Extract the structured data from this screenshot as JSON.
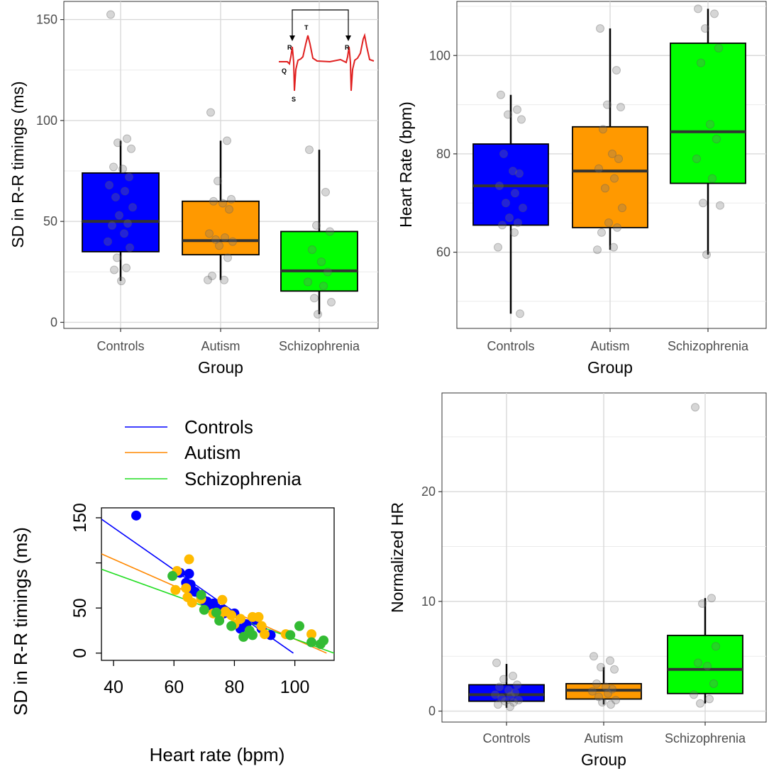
{
  "chart_data": [
    {
      "type": "boxplot",
      "id": "sd",
      "ylabel": "SD in R-R timings (ms)",
      "xlabel": "Group",
      "ylim": [
        -3,
        159
      ],
      "yticks": [
        0,
        50,
        100,
        150
      ],
      "yminor": [
        25,
        75,
        125
      ],
      "categories": [
        "Controls",
        "Autism",
        "Schizophrenia"
      ],
      "colors": [
        "#0000ff",
        "#ff9900",
        "#00ff00"
      ],
      "boxes": [
        {
          "whisker_low": 20.5,
          "q1": 35,
          "median": 50,
          "q3": 74,
          "whisker_high": 90
        },
        {
          "whisker_low": 21,
          "q1": 33.5,
          "median": 40.5,
          "q3": 60,
          "whisker_high": 90
        },
        {
          "whisker_low": 4,
          "q1": 15.5,
          "median": 25.5,
          "q3": 45,
          "whisker_high": 85.5
        }
      ],
      "points": [
        [
          152.5,
          91,
          89,
          86,
          77,
          76,
          72,
          68,
          65,
          62,
          57,
          53,
          49,
          48,
          44,
          40,
          37,
          32,
          27,
          26,
          20.5
        ],
        [
          104,
          90,
          70,
          61,
          60,
          59,
          56,
          44,
          42,
          41,
          40,
          38,
          32,
          23,
          21,
          21
        ],
        [
          85.5,
          64.5,
          48,
          45,
          36,
          30,
          25,
          20,
          18,
          12,
          10,
          4
        ]
      ],
      "inset": {
        "labels": [
          "R",
          "T",
          "R",
          "Q",
          "S"
        ]
      }
    },
    {
      "type": "boxplot",
      "id": "hr",
      "ylabel": "Heart Rate (bpm)",
      "xlabel": "Group",
      "ylim": [
        44.5,
        111
      ],
      "yticks": [
        60,
        80,
        100
      ],
      "yminor": [
        50,
        70,
        90,
        110
      ],
      "categories": [
        "Controls",
        "Autism",
        "Schizophrenia"
      ],
      "colors": [
        "#0000ff",
        "#ff9900",
        "#00ff00"
      ],
      "boxes": [
        {
          "whisker_low": 47.5,
          "q1": 65.5,
          "median": 73.5,
          "q3": 82,
          "whisker_high": 92
        },
        {
          "whisker_low": 60.5,
          "q1": 65,
          "median": 76.5,
          "q3": 85.5,
          "whisker_high": 105.5
        },
        {
          "whisker_low": 59.5,
          "q1": 74,
          "median": 84.5,
          "q3": 102.5,
          "whisker_high": 109.5
        }
      ],
      "points": [
        [
          92,
          89,
          88,
          87,
          80,
          76.5,
          76,
          73.5,
          72,
          70,
          69,
          67,
          66,
          65.5,
          64,
          61,
          47.5
        ],
        [
          105.5,
          97,
          90,
          89.5,
          85,
          80,
          79,
          77,
          75,
          73,
          69,
          66,
          65,
          64,
          61,
          60.5
        ],
        [
          109.5,
          108.5,
          105.5,
          101.5,
          98.5,
          86,
          83,
          79,
          75,
          70,
          69.5,
          59.5
        ]
      ]
    },
    {
      "type": "scatter",
      "id": "scatter",
      "xlabel": "Heart rate (bpm)",
      "ylabel": "SD in R-R timings (ms)",
      "xlim": [
        36,
        113
      ],
      "ylim": [
        -8,
        161
      ],
      "xticks": [
        40,
        60,
        80,
        100
      ],
      "yticks": [
        0,
        50,
        150
      ],
      "yticks_unlabeled": [
        100
      ],
      "legend": [
        "Controls",
        "Autism",
        "Schizophrenia"
      ],
      "legend_position": "top",
      "series": [
        {
          "name": "Controls",
          "color": "#0000ff",
          "points": [
            [
              47.5,
              152.5
            ],
            [
              62,
              89
            ],
            [
              64,
              78
            ],
            [
              65,
              88
            ],
            [
              65.5,
              76
            ],
            [
              66,
              70
            ],
            [
              67,
              68
            ],
            [
              69,
              62
            ],
            [
              70,
              58
            ],
            [
              71,
              57
            ],
            [
              72,
              53
            ],
            [
              73,
              55
            ],
            [
              74,
              50
            ],
            [
              75,
              46
            ],
            [
              76,
              48
            ],
            [
              76.5,
              44
            ],
            [
              80,
              44
            ],
            [
              82,
              27
            ],
            [
              84,
              32
            ],
            [
              87,
              37
            ],
            [
              89,
              27
            ],
            [
              92,
              20
            ]
          ],
          "fit": [
            [
              36,
              148.5
            ],
            [
              99.5,
              0
            ]
          ]
        },
        {
          "name": "Autism",
          "color": "#ffbb00",
          "points": [
            [
              60.5,
              70
            ],
            [
              61,
              91
            ],
            [
              64,
              72
            ],
            [
              64.5,
              62
            ],
            [
              65,
              104
            ],
            [
              66,
              56
            ],
            [
              69,
              60
            ],
            [
              73,
              44
            ],
            [
              75,
              41
            ],
            [
              76,
              59
            ],
            [
              77,
              46
            ],
            [
              79,
              42
            ],
            [
              80,
              32
            ],
            [
              82,
              38
            ],
            [
              85,
              23
            ],
            [
              86,
              40
            ],
            [
              88,
              40
            ],
            [
              89,
              30
            ],
            [
              90,
              21
            ],
            [
              97,
              21
            ],
            [
              105.5,
              21
            ]
          ],
          "fit": [
            [
              36,
              110
            ],
            [
              110.5,
              0
            ]
          ]
        },
        {
          "name": "Schizophrenia",
          "color": "#33bb33",
          "points": [
            [
              59.5,
              85.5
            ],
            [
              69,
              64.5
            ],
            [
              70,
              48
            ],
            [
              74,
              45
            ],
            [
              75,
              36
            ],
            [
              79,
              30
            ],
            [
              83,
              18
            ],
            [
              85,
              25
            ],
            [
              86,
              20
            ],
            [
              98.5,
              20
            ],
            [
              101.5,
              30
            ],
            [
              105.5,
              12
            ],
            [
              108.5,
              10
            ],
            [
              109.5,
              14
            ]
          ],
          "fit": [
            [
              36,
              93
            ],
            [
              113,
              0
            ]
          ]
        }
      ]
    },
    {
      "type": "boxplot",
      "id": "norm",
      "ylabel": "Normalized HR",
      "xlabel": "Group",
      "ylim": [
        -1,
        29
      ],
      "yticks": [
        0,
        10,
        20
      ],
      "yminor": [
        5,
        15,
        25
      ],
      "categories": [
        "Controls",
        "Autism",
        "Schizophrenia"
      ],
      "colors": [
        "#0000ff",
        "#ff9900",
        "#00ff00"
      ],
      "boxes": [
        {
          "whisker_low": 0.3,
          "q1": 0.9,
          "median": 1.5,
          "q3": 2.4,
          "whisker_high": 4.3
        },
        {
          "whisker_low": 0.6,
          "q1": 1.1,
          "median": 1.9,
          "q3": 2.5,
          "whisker_high": 4.0
        },
        {
          "whisker_low": 0.7,
          "q1": 1.6,
          "median": 3.8,
          "q3": 6.9,
          "whisker_high": 10.3
        }
      ],
      "points": [
        [
          4.4,
          3.2,
          2.9,
          2.4,
          2.2,
          1.9,
          1.7,
          1.5,
          1.4,
          1.2,
          1.0,
          0.9,
          0.8,
          0.6,
          0.4
        ],
        [
          5.0,
          4.6,
          4.0,
          3.8,
          2.5,
          2.2,
          2.0,
          1.8,
          1.6,
          1.3,
          1.0,
          0.8,
          0.6
        ],
        [
          27.7,
          10.3,
          9.8,
          5.9,
          4.4,
          4.1,
          2.5,
          1.5,
          1.1,
          0.7
        ]
      ]
    }
  ]
}
